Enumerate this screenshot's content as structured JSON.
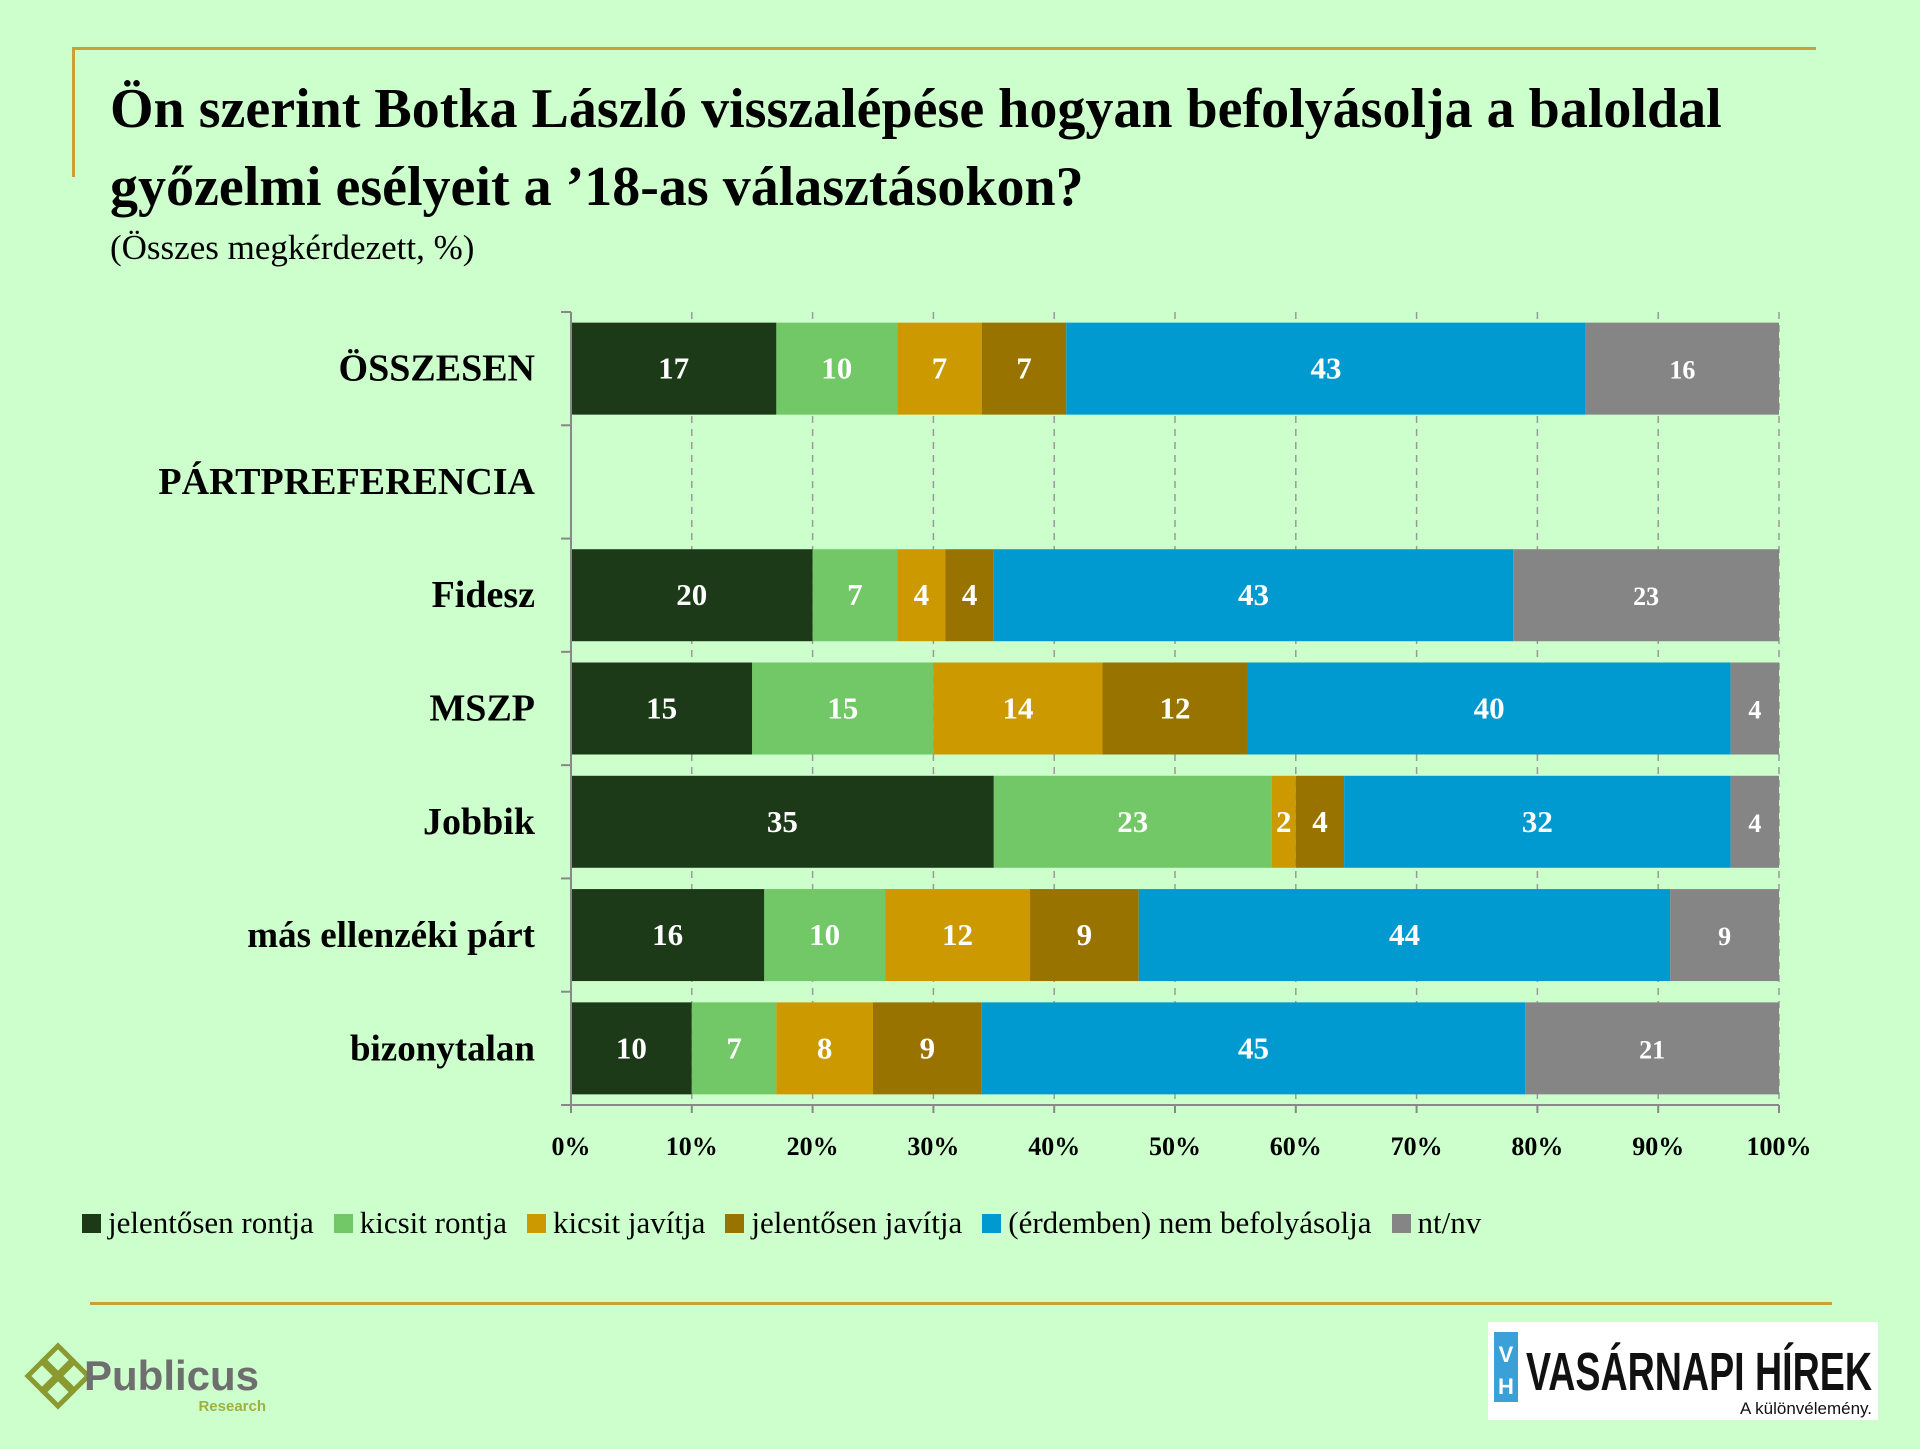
{
  "title": "Ön szerint Botka László visszalépése hogyan befolyásolja a baloldal győzelmi esélyeit a ’18-as választásokon?",
  "subtitle": "(Összes megkérdezett, %)",
  "chart_data": {
    "type": "bar",
    "orientation": "horizontal",
    "stacked": true,
    "categories": [
      "ÖSSZESEN",
      "PÁRTPREFERENCIA",
      "Fidesz",
      "MSZP",
      "Jobbik",
      "más ellenzéki párt",
      "bizonytalan"
    ],
    "category_bold": [
      true,
      true,
      true,
      true,
      true,
      false,
      false
    ],
    "series": [
      {
        "name": "jelentősen rontja",
        "color": "#1c3a17",
        "values": [
          17,
          null,
          20,
          15,
          35,
          16,
          10
        ]
      },
      {
        "name": "kicsit rontja",
        "color": "#72c766",
        "values": [
          10,
          null,
          7,
          15,
          23,
          10,
          7
        ]
      },
      {
        "name": "kicsit javítja",
        "color": "#cc9a00",
        "values": [
          7,
          null,
          4,
          14,
          2,
          12,
          8
        ]
      },
      {
        "name": "jelentősen javítja",
        "color": "#987300",
        "values": [
          7,
          null,
          4,
          12,
          4,
          9,
          9
        ]
      },
      {
        "name": "(érdemben) nem befolyásolja",
        "color": "#009ad0",
        "values": [
          43,
          null,
          43,
          40,
          32,
          44,
          45
        ]
      },
      {
        "name": "nt/nv",
        "color": "#858585",
        "values": [
          16,
          null,
          23,
          4,
          4,
          9,
          21
        ]
      }
    ],
    "xlim": [
      0,
      100
    ],
    "x_ticks": [
      "0%",
      "10%",
      "20%",
      "30%",
      "40%",
      "50%",
      "60%",
      "70%",
      "80%",
      "90%",
      "100%"
    ],
    "grid": true,
    "legend_position": "bottom"
  },
  "logos": {
    "publicus_name": "Publicus",
    "publicus_sub": "Research",
    "vh_badge_top": "V",
    "vh_badge_bottom": "H",
    "vh_name": "VASÁRNAPI HÍREK",
    "vh_tagline": "A különvélemény."
  },
  "colors": {
    "background": "#ccffcc",
    "frame": "#c8a037"
  }
}
